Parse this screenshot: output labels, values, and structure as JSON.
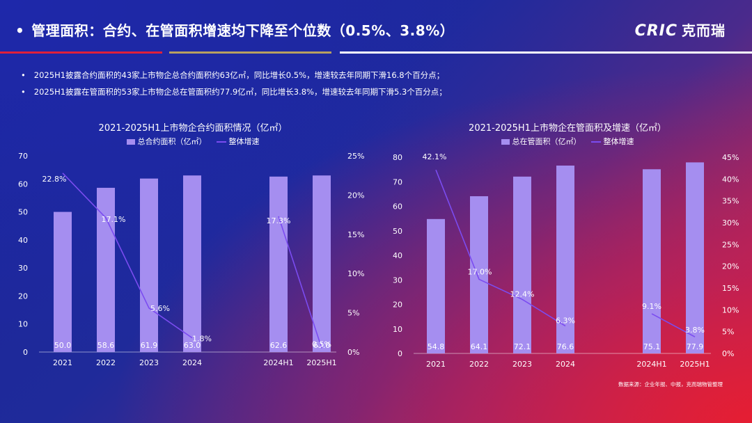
{
  "header": {
    "title": "管理面积：合约、在管面积增速均下降至个位数（0.5%、3.8%）",
    "logo_en": "CRIC",
    "logo_cn": "克而瑞"
  },
  "bullets": [
    "2025H1披露合约面积的43家上市物企总合约面积约63亿㎡，同比增长0.5%，增速较去年同期下滑16.8个百分点；",
    "2025H1披露在管面积的53家上市物企总在管面积约77.9亿㎡，同比增长3.8%，增速较去年同期下滑5.3个百分点；"
  ],
  "source": "数据来源：企业年报、中报，克而瑞物管整理",
  "colors": {
    "bar": "#a58ef0",
    "line": "#7b4cf0",
    "accent_red": "#e0203a",
    "accent_gold": "#b8a060"
  },
  "chart_data": [
    {
      "type": "bar+line",
      "title": "2021-2025H1上市物企合约面积情况（亿㎡）",
      "categories": [
        "2021",
        "2022",
        "2023",
        "2024",
        "2024H1",
        "2025H1"
      ],
      "series": [
        {
          "name": "总合约面积（亿㎡）",
          "type": "bar",
          "values": [
            50.0,
            58.6,
            61.9,
            63.0,
            62.6,
            63.0
          ],
          "labels": [
            "50.0",
            "58.6",
            "61.9",
            "63.0",
            "62.6",
            "63.0"
          ]
        },
        {
          "name": "整体增速",
          "type": "line",
          "axis": "right",
          "values": [
            22.8,
            17.1,
            5.6,
            1.8,
            17.3,
            0.5
          ],
          "labels": [
            "22.8%",
            "17.1%",
            "5.6%",
            "1.8%",
            "17.3%",
            "0.5%"
          ]
        }
      ],
      "y_left": {
        "min": 0,
        "max": 70,
        "ticks": [
          "0",
          "10",
          "20",
          "30",
          "40",
          "50",
          "60",
          "70"
        ]
      },
      "y_right": {
        "min": 0,
        "max": 25,
        "ticks": [
          "0%",
          "5%",
          "10%",
          "15%",
          "20%",
          "25%"
        ]
      },
      "line_segments": [
        [
          0,
          3
        ],
        [
          4,
          5
        ]
      ],
      "legend": "top"
    },
    {
      "type": "bar+line",
      "title": "2021-2025H1上市物企在管面积及增速（亿㎡）",
      "categories": [
        "2021",
        "2022",
        "2023",
        "2024",
        "2024H1",
        "2025H1"
      ],
      "series": [
        {
          "name": "总在管面积（亿㎡）",
          "type": "bar",
          "values": [
            54.8,
            64.1,
            72.1,
            76.6,
            75.1,
            77.9
          ],
          "labels": [
            "54.8",
            "64.1",
            "72.1",
            "76.6",
            "75.1",
            "77.9"
          ]
        },
        {
          "name": "整体增速",
          "type": "line",
          "axis": "right",
          "values": [
            42.1,
            17.0,
            12.4,
            6.3,
            9.1,
            3.8
          ],
          "labels": [
            "42.1%",
            "17.0%",
            "12.4%",
            "6.3%",
            "9.1%",
            "3.8%"
          ]
        }
      ],
      "y_left": {
        "min": 0,
        "max": 80,
        "ticks": [
          "0",
          "10",
          "20",
          "30",
          "40",
          "50",
          "60",
          "70",
          "80"
        ]
      },
      "y_right": {
        "min": 0,
        "max": 45,
        "ticks": [
          "0%",
          "5%",
          "10%",
          "15%",
          "20%",
          "25%",
          "30%",
          "35%",
          "40%",
          "45%"
        ]
      },
      "line_segments": [
        [
          0,
          3
        ],
        [
          4,
          5
        ]
      ],
      "legend": "top"
    }
  ]
}
